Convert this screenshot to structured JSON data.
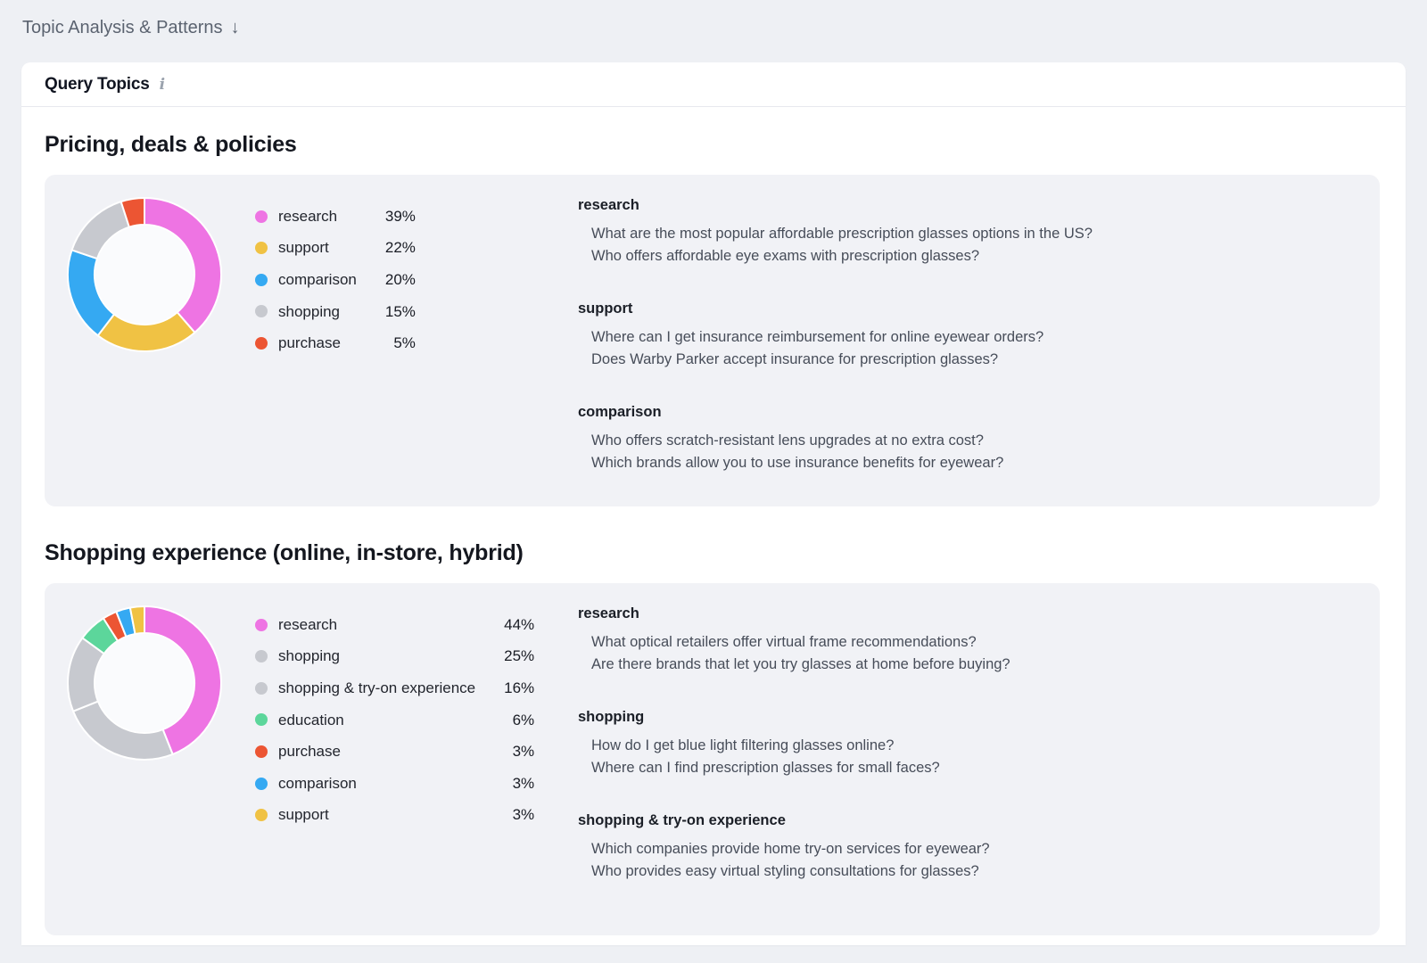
{
  "page": {
    "title": "Topic Analysis & Patterns",
    "arrow": "↓"
  },
  "card": {
    "title": "Query Topics",
    "info_icon": "i"
  },
  "sections": [
    {
      "heading": "Pricing, deals & policies",
      "chart_data": {
        "type": "pie",
        "variant": "donut",
        "unit": "percent",
        "legend_position": "right",
        "series": [
          {
            "label": "research",
            "value": 39,
            "color": "#ee74e3"
          },
          {
            "label": "support",
            "value": 22,
            "color": "#f0c244"
          },
          {
            "label": "comparison",
            "value": 20,
            "color": "#35a9f2"
          },
          {
            "label": "shopping",
            "value": 15,
            "color": "#c7c9cf"
          },
          {
            "label": "purchase",
            "value": 5,
            "color": "#ec5533"
          }
        ]
      },
      "query_groups": [
        {
          "topic": "research",
          "queries": [
            "What are the most popular affordable prescription glasses options in the US?",
            "Who offers affordable eye exams with prescription glasses?"
          ]
        },
        {
          "topic": "support",
          "queries": [
            "Where can I get insurance reimbursement for online eyewear orders?",
            "Does Warby Parker accept insurance for prescription glasses?"
          ]
        },
        {
          "topic": "comparison",
          "queries": [
            "Who offers scratch-resistant lens upgrades at no extra cost?",
            "Which brands allow you to use insurance benefits for eyewear?"
          ]
        }
      ]
    },
    {
      "heading": "Shopping experience (online, in-store, hybrid)",
      "chart_data": {
        "type": "pie",
        "variant": "donut",
        "unit": "percent",
        "legend_position": "right",
        "series": [
          {
            "label": "research",
            "value": 44,
            "color": "#ee74e3"
          },
          {
            "label": "shopping",
            "value": 25,
            "color": "#c7c9cf"
          },
          {
            "label": "shopping & try-on experience",
            "value": 16,
            "color": "#c7c9cf"
          },
          {
            "label": "education",
            "value": 6,
            "color": "#5cd69b"
          },
          {
            "label": "purchase",
            "value": 3,
            "color": "#ec5533"
          },
          {
            "label": "comparison",
            "value": 3,
            "color": "#35a9f2"
          },
          {
            "label": "support",
            "value": 3,
            "color": "#f0c244"
          }
        ]
      },
      "query_groups": [
        {
          "topic": "research",
          "queries": [
            "What optical retailers offer virtual frame recommendations?",
            "Are there brands that let you try glasses at home before buying?"
          ]
        },
        {
          "topic": "shopping",
          "queries": [
            "How do I get blue light filtering glasses online?",
            "Where can I find prescription glasses for small faces?"
          ]
        },
        {
          "topic": "shopping & try-on experience",
          "queries": [
            "Which companies provide home try-on services for eyewear?",
            "Who provides easy virtual styling consultations for glasses?"
          ]
        }
      ]
    }
  ],
  "style": {
    "donut_hole_color": "#fafbfd",
    "panel_color": "#f1f2f6"
  }
}
